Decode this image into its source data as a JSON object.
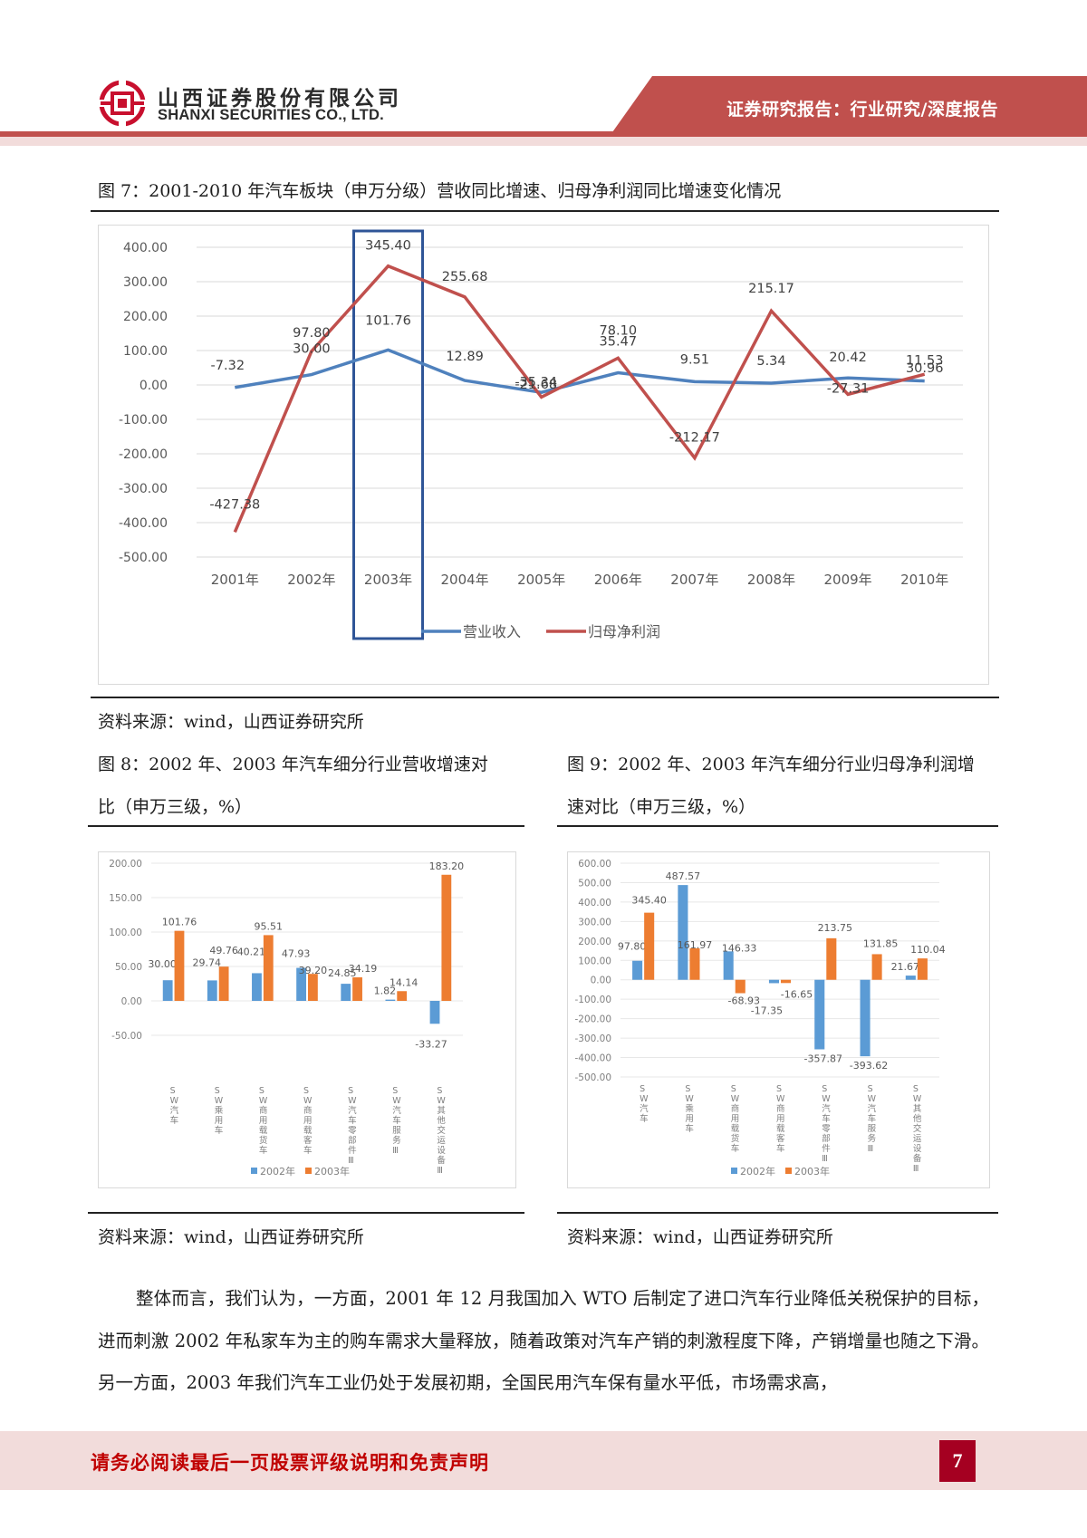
{
  "header": {
    "company_cn": "山西证券股份有限公司",
    "company_en": "SHANXI SECURITIES CO., LTD.",
    "report_type": "证券研究报告：行业研究/深度报告",
    "colors": {
      "brand_red": "#c0504d",
      "pink": "#f2dcdb"
    }
  },
  "figure7": {
    "title": "图 7：2001-2010 年汽车板块（申万分级）营收同比增速、归母净利润同比增速变化情况",
    "source": "资料来源：wind，山西证券研究所"
  },
  "figure8": {
    "title_line1": "图 8：2002 年、2003 年汽车细分行业营收增速对",
    "title_line2": "比（申万三级，%）",
    "source": "资料来源：wind，山西证券研究所"
  },
  "figure9": {
    "title_line1": "图 9：2002 年、2003 年汽车细分行业归母净利润增",
    "title_line2": "速对比（申万三级，%）",
    "source": "资料来源：wind，山西证券研究所"
  },
  "chart_data": [
    {
      "type": "line",
      "title": "2001-2010年汽车板块（申万分级）营收同比增速、归母净利润同比增速变化情况",
      "categories": [
        "2001年",
        "2002年",
        "2003年",
        "2004年",
        "2005年",
        "2006年",
        "2007年",
        "2008年",
        "2009年",
        "2010年"
      ],
      "series": [
        {
          "name": "营业收入",
          "color": "#4f81bd",
          "values": [
            -7.32,
            30.0,
            101.76,
            12.89,
            -21.68,
            35.47,
            9.51,
            5.34,
            20.42,
            11.53
          ]
        },
        {
          "name": "归母净利润",
          "color": "#c0504d",
          "values": [
            -427.38,
            97.8,
            345.4,
            255.68,
            -35.34,
            78.1,
            -212.17,
            215.17,
            -27.31,
            30.96
          ]
        }
      ],
      "yticks": [
        "400.00",
        "300.00",
        "200.00",
        "100.00",
        "0.00",
        "-100.00",
        "-200.00",
        "-300.00",
        "-400.00",
        "-500.00"
      ],
      "ylim": [
        -500,
        400
      ],
      "grid": true,
      "legend_position": "bottom",
      "annotation": "highlight box around 2003年",
      "xlabel": "",
      "ylabel": ""
    },
    {
      "type": "bar",
      "title": "2002年、2003年汽车细分行业营收增速对比（申万三级，%）",
      "categories": [
        "SW汽车",
        "SW乘用车",
        "SW商用载货车",
        "SW商用载客车",
        "SW汽车零部件Ⅲ",
        "SW汽车服务Ⅲ",
        "SW其他交运设备Ⅲ"
      ],
      "series": [
        {
          "name": "2002年",
          "color": "#5b9bd5",
          "values": [
            30.0,
            29.74,
            40.21,
            47.93,
            24.85,
            1.82,
            -33.27
          ]
        },
        {
          "name": "2003年",
          "color": "#ed7d31",
          "values": [
            101.76,
            49.76,
            95.51,
            39.2,
            34.19,
            14.14,
            183.2
          ]
        }
      ],
      "yticks": [
        "200.00",
        "150.00",
        "100.00",
        "50.00",
        "0.00",
        "-50.00"
      ],
      "ylim": [
        -50,
        200
      ],
      "grid": true,
      "legend_position": "bottom",
      "xlabel": "",
      "ylabel": ""
    },
    {
      "type": "bar",
      "title": "2002年、2003年汽车细分行业归母净利润增速对比（申万三级，%）",
      "categories": [
        "SW汽车",
        "SW乘用车",
        "SW商用载货车",
        "SW商用载客车",
        "SW汽车零部件Ⅲ",
        "SW汽车服务Ⅲ",
        "SW其他交运设备Ⅲ"
      ],
      "series": [
        {
          "name": "2002年",
          "color": "#5b9bd5",
          "values": [
            97.8,
            487.57,
            146.33,
            -17.35,
            -357.87,
            -393.62,
            21.67
          ]
        },
        {
          "name": "2003年",
          "color": "#ed7d31",
          "values": [
            345.4,
            161.97,
            -68.93,
            -16.65,
            213.75,
            131.85,
            110.04
          ]
        }
      ],
      "yticks": [
        "600.00",
        "500.00",
        "400.00",
        "300.00",
        "200.00",
        "100.00",
        "0.00",
        "-100.00",
        "-200.00",
        "-300.00",
        "-400.00",
        "-500.00"
      ],
      "ylim": [
        -500,
        600
      ],
      "grid": true,
      "legend_position": "bottom",
      "xlabel": "",
      "ylabel": ""
    }
  ],
  "body": {
    "paragraph": "整体而言，我们认为，一方面，2001 年 12 月我国加入 WTO 后制定了进口汽车行业降低关税保护的目标，进而刺激 2002 年私家车为主的购车需求大量释放，随着政策对汽车产销的刺激程度下降，产销增量也随之下滑。另一方面，2003 年我们汽车工业仍处于发展初期，全国民用汽车保有量水平低，市场需求高，"
  },
  "footer": {
    "disclaimer": "请务必阅读最后一页股票评级说明和免责声明",
    "page_number": "7"
  }
}
